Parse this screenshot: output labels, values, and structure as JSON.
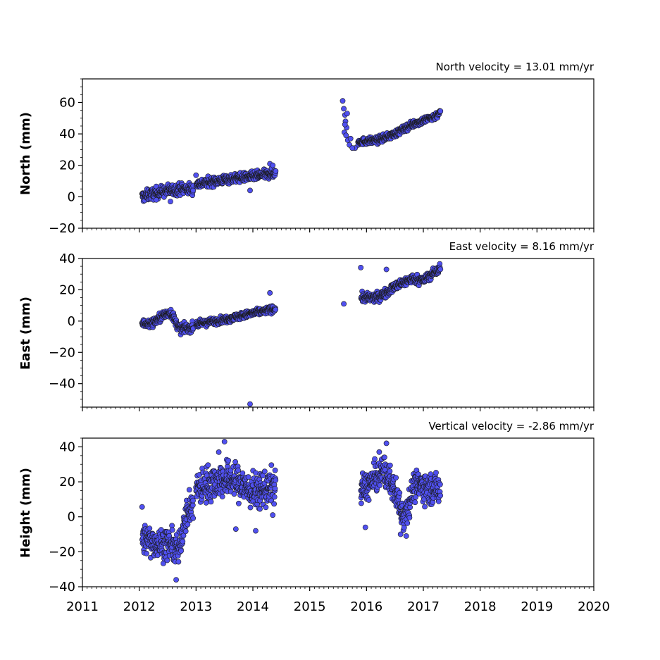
{
  "chart_data": [
    {
      "type": "scatter",
      "title": "North velocity = 13.01 mm/yr",
      "xlabel": "",
      "ylabel": "North (mm)",
      "xlim": [
        2011,
        2020
      ],
      "ylim": [
        -20,
        75
      ],
      "yticks": [
        -20,
        0,
        20,
        40,
        60
      ],
      "xticks": [
        2011,
        2012,
        2013,
        2014,
        2015,
        2016,
        2017,
        2018,
        2019,
        2020
      ],
      "x_tick_labels_shown": false,
      "grid": false,
      "marker_color": "#5050f0",
      "marker_edge": "#1a1a1a",
      "segments": [
        {
          "x": [
            2012.05,
            2012.35,
            2012.7,
            2012.95
          ],
          "y": [
            0,
            3,
            5,
            5
          ],
          "spread": 2.5
        },
        {
          "x": [
            2013.0,
            2013.5,
            2014.0,
            2014.4
          ],
          "y": [
            8,
            11,
            13,
            15
          ],
          "spread": 2
        },
        {
          "x": [
            2015.85,
            2016.2,
            2016.5,
            2016.8,
            2017.2,
            2017.3
          ],
          "y": [
            35,
            36,
            40,
            46,
            51,
            54
          ],
          "spread": 1.5
        }
      ],
      "outliers": {
        "x": [
          2015.58,
          2015.6,
          2015.62,
          2015.63,
          2015.65,
          2015.61,
          2015.64,
          2015.67,
          2015.7,
          2015.66,
          2015.62,
          2015.72,
          2015.8,
          2015.75,
          2014.3,
          2014.35,
          2012.3,
          2012.55,
          2013.95
        ],
        "y": [
          61,
          56,
          52,
          48,
          44,
          41,
          39,
          36,
          33,
          53,
          46,
          37,
          31,
          31,
          21,
          20,
          -2,
          -3,
          4
        ]
      }
    },
    {
      "type": "scatter",
      "title": "East velocity = 8.16 mm/yr",
      "xlabel": "",
      "ylabel": "East (mm)",
      "xlim": [
        2011,
        2020
      ],
      "ylim": [
        -55,
        40
      ],
      "yticks": [
        -40,
        -20,
        0,
        20,
        40
      ],
      "xticks": [
        2011,
        2012,
        2013,
        2014,
        2015,
        2016,
        2017,
        2018,
        2019,
        2020
      ],
      "x_tick_labels_shown": false,
      "grid": false,
      "marker_color": "#5050f0",
      "marker_edge": "#1a1a1a",
      "segments": [
        {
          "x": [
            2012.05,
            2012.2,
            2012.4,
            2012.55,
            2012.7,
            2012.95
          ],
          "y": [
            -1,
            -2,
            3,
            6,
            -5,
            -4
          ],
          "spread": 2
        },
        {
          "x": [
            2013.0,
            2013.5,
            2014.0,
            2014.4
          ],
          "y": [
            -2,
            1,
            5,
            8
          ],
          "spread": 1.5
        },
        {
          "x": [
            2015.9,
            2016.2,
            2016.5,
            2016.8,
            2017.0,
            2017.3
          ],
          "y": [
            15,
            15,
            22,
            27,
            26,
            34
          ],
          "spread": 2
        }
      ],
      "outliers": {
        "x": [
          2015.6,
          2013.95,
          2014.3,
          2016.35
        ],
        "y": [
          11,
          -53,
          18,
          33
        ]
      }
    },
    {
      "type": "scatter",
      "title": "Vertical velocity = -2.86 mm/yr",
      "xlabel": "",
      "ylabel": "Height (mm)",
      "xlim": [
        2011,
        2020
      ],
      "ylim": [
        -40,
        45
      ],
      "yticks": [
        -40,
        -20,
        0,
        20,
        40
      ],
      "xticks": [
        2011,
        2012,
        2013,
        2014,
        2015,
        2016,
        2017,
        2018,
        2019,
        2020
      ],
      "x_tick_labels": [
        "2011",
        "2012",
        "2013",
        "2014",
        "2015",
        "2016",
        "2017",
        "2018",
        "2019",
        "2020"
      ],
      "x_tick_labels_shown": true,
      "grid": false,
      "marker_color": "#5050f0",
      "marker_edge": "#1a1a1a",
      "segments": [
        {
          "x": [
            2012.05,
            2012.3,
            2012.55,
            2012.7,
            2012.8,
            2012.95
          ],
          "y": [
            -12,
            -15,
            -16,
            -20,
            0,
            6
          ],
          "spread": 6
        },
        {
          "x": [
            2013.0,
            2013.3,
            2013.6,
            2014.0,
            2014.4
          ],
          "y": [
            16,
            20,
            22,
            14,
            18
          ],
          "spread": 7
        },
        {
          "x": [
            2015.9,
            2016.1,
            2016.3,
            2016.5,
            2016.65,
            2016.85,
            2017.05,
            2017.3
          ],
          "y": [
            15,
            20,
            27,
            15,
            0,
            18,
            17,
            15
          ],
          "spread": 6
        }
      ],
      "outliers": {
        "x": [
          2013.5,
          2013.4,
          2012.65,
          2015.98,
          2016.35,
          2016.6,
          2016.7,
          2013.7,
          2014.05,
          2014.35
        ],
        "y": [
          43,
          37,
          -36,
          -6,
          42,
          -10,
          -11,
          -7,
          -8,
          1
        ]
      }
    }
  ]
}
